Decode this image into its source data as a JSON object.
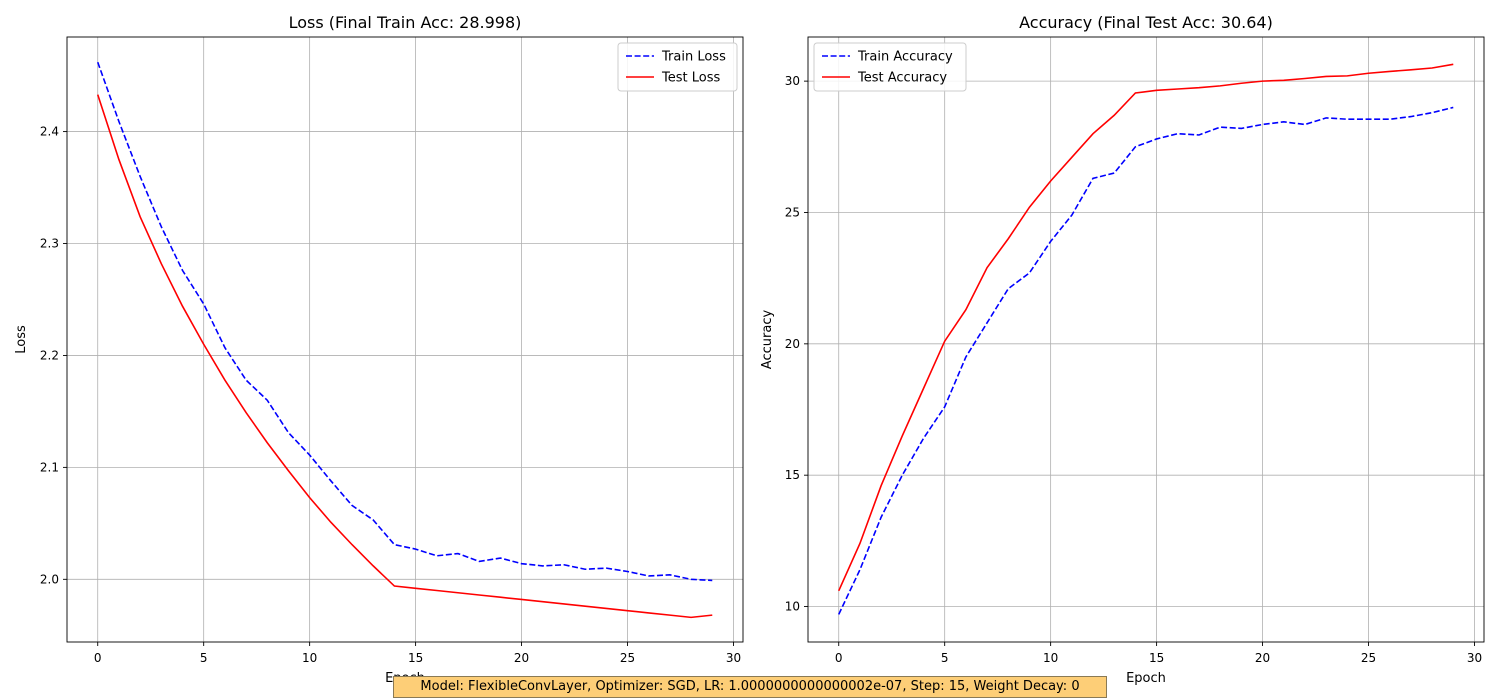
{
  "footer": "Model: FlexibleConvLayer, Optimizer: SGD, LR: 1.0000000000000002e-07, Step: 15, Weight Decay: 0",
  "chart_data": [
    {
      "type": "line",
      "title": "Loss (Final Train Acc: 28.998)",
      "xlabel": "Epoch",
      "ylabel": "Loss",
      "xlim": [
        -1.45,
        30.45
      ],
      "ylim": [
        1.944,
        2.4845
      ],
      "xticks": [
        0,
        5,
        10,
        15,
        20,
        25,
        30
      ],
      "yticks": [
        2.0,
        2.1,
        2.2,
        2.3,
        2.4
      ],
      "ytick_labels": [
        "2.0",
        "2.1",
        "2.2",
        "2.3",
        "2.4"
      ],
      "grid": true,
      "legend": "top-right",
      "x": [
        0,
        1,
        2,
        3,
        4,
        5,
        6,
        7,
        8,
        9,
        10,
        11,
        12,
        13,
        14,
        15,
        16,
        17,
        18,
        19,
        20,
        21,
        22,
        23,
        24,
        25,
        26,
        27,
        28,
        29
      ],
      "series": [
        {
          "name": "Train Loss",
          "color": "#0000ff",
          "style": "dashed",
          "values": [
            2.462,
            2.409,
            2.36,
            2.315,
            2.276,
            2.246,
            2.207,
            2.178,
            2.16,
            2.131,
            2.111,
            2.088,
            2.066,
            2.053,
            2.031,
            2.027,
            2.021,
            2.023,
            2.016,
            2.019,
            2.014,
            2.012,
            2.013,
            2.009,
            2.01,
            2.007,
            2.003,
            2.004,
            2.0,
            1.999
          ]
        },
        {
          "name": "Test Loss",
          "color": "#ff0000",
          "style": "solid",
          "values": [
            2.433,
            2.375,
            2.324,
            2.282,
            2.244,
            2.21,
            2.178,
            2.149,
            2.122,
            2.097,
            2.073,
            2.051,
            2.031,
            2.012,
            1.994,
            1.992,
            1.99,
            1.988,
            1.986,
            1.984,
            1.982,
            1.98,
            1.978,
            1.976,
            1.974,
            1.972,
            1.97,
            1.968,
            1.966,
            1.968
          ]
        }
      ]
    },
    {
      "type": "line",
      "title": "Accuracy (Final Test Acc: 30.64)",
      "xlabel": "Epoch",
      "ylabel": "Accuracy",
      "xlim": [
        -1.45,
        30.45
      ],
      "ylim": [
        8.65,
        31.68
      ],
      "xticks": [
        0,
        5,
        10,
        15,
        20,
        25,
        30
      ],
      "yticks": [
        10,
        15,
        20,
        25,
        30
      ],
      "ytick_labels": [
        "10",
        "15",
        "20",
        "25",
        "30"
      ],
      "grid": true,
      "legend": "top-left",
      "x": [
        0,
        1,
        2,
        3,
        4,
        5,
        6,
        7,
        8,
        9,
        10,
        11,
        12,
        13,
        14,
        15,
        16,
        17,
        18,
        19,
        20,
        21,
        22,
        23,
        24,
        25,
        26,
        27,
        28,
        29
      ],
      "series": [
        {
          "name": "Train Accuracy",
          "color": "#0000ff",
          "style": "dashed",
          "values": [
            9.7,
            11.4,
            13.4,
            15.0,
            16.4,
            17.6,
            19.5,
            20.8,
            22.1,
            22.7,
            23.9,
            24.9,
            26.3,
            26.5,
            27.5,
            27.8,
            28.0,
            27.95,
            28.25,
            28.2,
            28.35,
            28.45,
            28.35,
            28.6,
            28.55,
            28.55,
            28.55,
            28.65,
            28.8,
            28.998
          ]
        },
        {
          "name": "Test Accuracy",
          "color": "#ff0000",
          "style": "solid",
          "values": [
            10.6,
            12.4,
            14.6,
            16.5,
            18.3,
            20.1,
            21.3,
            22.9,
            24.0,
            25.2,
            26.2,
            27.1,
            28.0,
            28.7,
            29.55,
            29.65,
            29.7,
            29.75,
            29.82,
            29.92,
            30.0,
            30.03,
            30.1,
            30.18,
            30.2,
            30.3,
            30.37,
            30.43,
            30.5,
            30.64
          ]
        }
      ]
    }
  ]
}
